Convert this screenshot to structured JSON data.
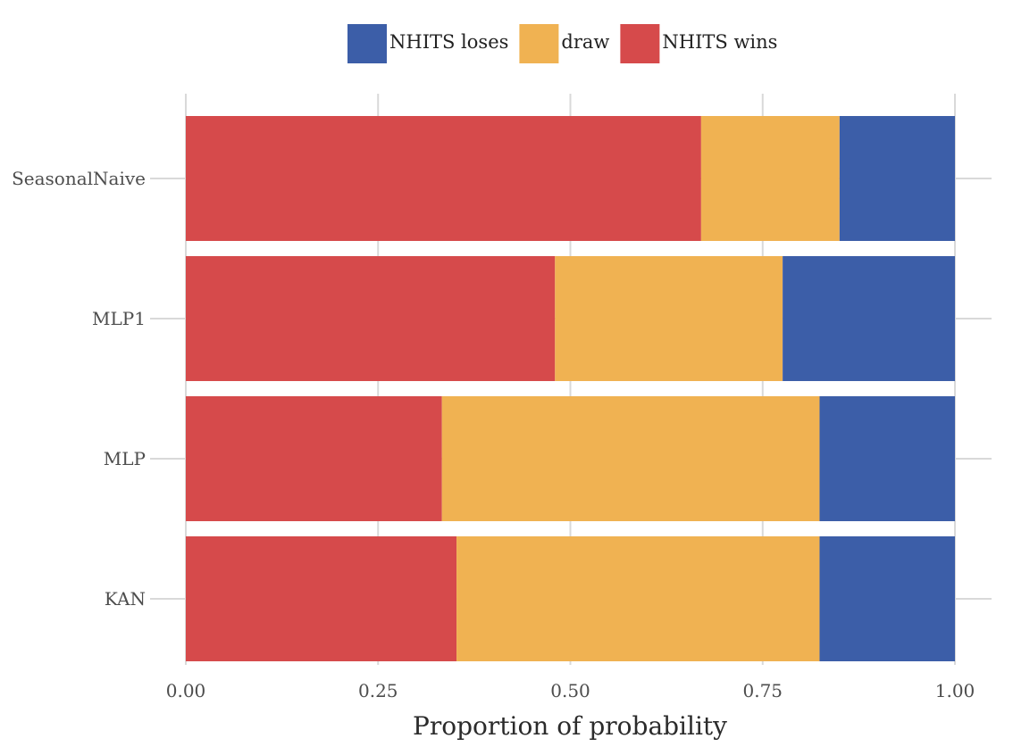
{
  "chart_data": {
    "type": "bar",
    "orientation": "horizontal",
    "stacked": true,
    "categories": [
      "SeasonalNaive",
      "MLP1",
      "MLP",
      "KAN"
    ],
    "series": [
      {
        "name": "NHITS wins",
        "color": "#d64a4b",
        "values": [
          0.67,
          0.48,
          0.333,
          0.352
        ]
      },
      {
        "name": "draw",
        "color": "#f0b252",
        "values": [
          0.18,
          0.296,
          0.491,
          0.472
        ]
      },
      {
        "name": "NHITS loses",
        "color": "#3c5ea8",
        "values": [
          0.15,
          0.224,
          0.176,
          0.176
        ]
      }
    ],
    "legend_order": [
      "NHITS loses",
      "draw",
      "NHITS wins"
    ],
    "legend_position": "top",
    "xlabel": "Proportion of probability",
    "ylabel": "",
    "xlim": [
      0,
      1
    ],
    "xticks": [
      "0.00",
      "0.25",
      "0.50",
      "0.75",
      "1.00"
    ],
    "grid": true
  }
}
